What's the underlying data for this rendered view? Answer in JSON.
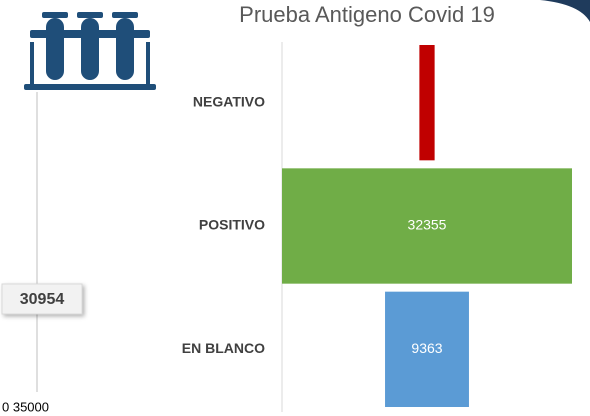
{
  "chart_data": {
    "type": "funnel",
    "title": "Prueba Antigeno Covid 19",
    "categories": [
      "NEGATIVO",
      "POSITIVO",
      "EN BLANCO"
    ],
    "values": [
      1700,
      32355,
      9363
    ],
    "colors": [
      "#c00000",
      "#70ad47",
      "#5b9bd5"
    ],
    "callout": "30954",
    "axis_text": "0 35000"
  }
}
